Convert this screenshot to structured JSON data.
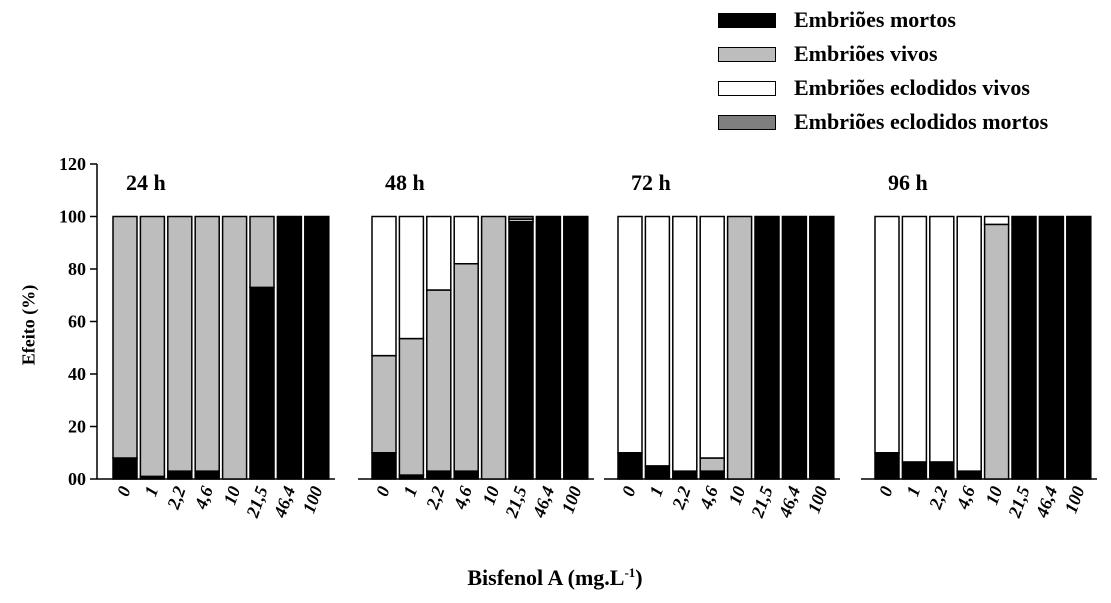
{
  "legend": [
    {
      "label": "Embriões mortos",
      "color": "#000000"
    },
    {
      "label": "Embriões vivos",
      "color": "#bdbdbd"
    },
    {
      "label": "Embriões eclodidos vivos",
      "color": "#ffffff"
    },
    {
      "label": "Embriões eclodidos mortos",
      "color": "#7f7f7f"
    }
  ],
  "axes": {
    "ylabel": "Efeito (%)",
    "xlabel_main": "Bisfenol A (mg.L",
    "xlabel_sup": "-1",
    "xlabel_end": ")"
  },
  "chart_data": {
    "type": "bar",
    "stacked": true,
    "ylim": [
      0,
      120
    ],
    "yticks": [
      0,
      20,
      40,
      60,
      80,
      100,
      120
    ],
    "ytick_labels": [
      "00",
      "20",
      "40",
      "60",
      "80",
      "100",
      "120"
    ],
    "categories": [
      "0",
      "1",
      "2,2",
      "4,6",
      "10",
      "21,5",
      "46,4",
      "100"
    ],
    "series_names": [
      "Embriões mortos",
      "Embriões vivos",
      "Embriões eclodidos vivos",
      "Embriões eclodidos mortos"
    ],
    "panels": [
      {
        "title": "24 h",
        "series": [
          {
            "name": "Embriões mortos",
            "values": [
              8,
              1,
              3,
              3,
              0,
              73,
              100,
              100
            ]
          },
          {
            "name": "Embriões vivos",
            "values": [
              92,
              99,
              97,
              97,
              100,
              27,
              0,
              0
            ]
          },
          {
            "name": "Embriões eclodidos vivos",
            "values": [
              0,
              0,
              0,
              0,
              0,
              0,
              0,
              0
            ]
          },
          {
            "name": "Embriões eclodidos mortos",
            "values": [
              0,
              0,
              0,
              0,
              0,
              0,
              0,
              0
            ]
          }
        ]
      },
      {
        "title": "48 h",
        "series": [
          {
            "name": "Embriões mortos",
            "values": [
              10,
              1.5,
              3,
              3,
              0,
              98,
              100,
              100
            ]
          },
          {
            "name": "Embriões vivos",
            "values": [
              37,
              52,
              69,
              79,
              100,
              1,
              0,
              0
            ]
          },
          {
            "name": "Embriões eclodidos vivos",
            "values": [
              53,
              46.5,
              28,
              18,
              0,
              0,
              0,
              0
            ]
          },
          {
            "name": "Embriões eclodidos mortos",
            "values": [
              0,
              0,
              0,
              0,
              0,
              1,
              0,
              0
            ]
          }
        ]
      },
      {
        "title": "72 h",
        "series": [
          {
            "name": "Embriões mortos",
            "values": [
              10,
              5,
              3,
              3,
              0,
              100,
              100,
              100
            ]
          },
          {
            "name": "Embriões vivos",
            "values": [
              0,
              0,
              0,
              5,
              100,
              0,
              0,
              0
            ]
          },
          {
            "name": "Embriões eclodidos vivos",
            "values": [
              90,
              95,
              97,
              92,
              0,
              0,
              0,
              0
            ]
          },
          {
            "name": "Embriões eclodidos mortos",
            "values": [
              0,
              0,
              0,
              0,
              0,
              0,
              0,
              0
            ]
          }
        ]
      },
      {
        "title": "96 h",
        "series": [
          {
            "name": "Embriões mortos",
            "values": [
              10,
              6.5,
              6.5,
              3,
              0,
              100,
              100,
              100
            ]
          },
          {
            "name": "Embriões vivos",
            "values": [
              0,
              0,
              0,
              0,
              97,
              0,
              0,
              0
            ]
          },
          {
            "name": "Embriões eclodidos vivos",
            "values": [
              90,
              93.5,
              93.5,
              97,
              3,
              0,
              0,
              0
            ]
          },
          {
            "name": "Embriões eclodidos mortos",
            "values": [
              0,
              0,
              0,
              0,
              0,
              0,
              0,
              0
            ]
          }
        ]
      }
    ]
  }
}
